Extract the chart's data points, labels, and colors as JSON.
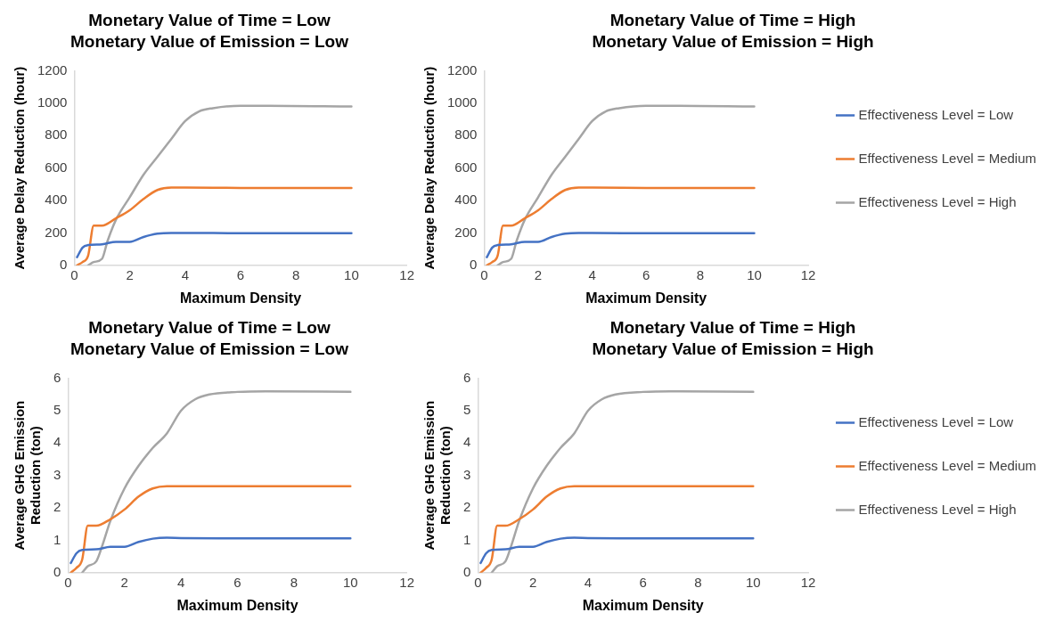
{
  "chart_data": [
    {
      "type": "line",
      "title": "Monetary Value of Time = Low",
      "subtitle": "Monetary Value of Emission = Low",
      "xlabel": "Maximum Density",
      "ylabel": "Average Delay Reduction (hour)",
      "xlim": [
        0,
        12
      ],
      "xticks": [
        0,
        2,
        4,
        6,
        8,
        10,
        12
      ],
      "ylim": [
        0,
        1200
      ],
      "yticks": [
        0,
        200,
        400,
        600,
        800,
        1000,
        1200
      ],
      "grid": false,
      "legend": false,
      "marker": "none",
      "line_style": "solid",
      "series": [
        {
          "color": "#4472c4",
          "x": [
            0.1,
            0.3,
            0.5,
            1,
            1.5,
            2,
            2.5,
            3,
            3.5,
            4,
            6,
            10
          ],
          "values": [
            50,
            110,
            125,
            130,
            145,
            145,
            175,
            195,
            200,
            200,
            198,
            198
          ]
        },
        {
          "color": "#ed7d31",
          "x": [
            0.1,
            0.3,
            0.5,
            0.7,
            1,
            1.5,
            2,
            2.5,
            3,
            3.5,
            4,
            6,
            10
          ],
          "values": [
            0,
            20,
            60,
            245,
            245,
            290,
            340,
            410,
            465,
            480,
            480,
            478,
            478
          ]
        },
        {
          "color": "#a5a5a5",
          "x": [
            0.5,
            0.7,
            1,
            1.2,
            1.5,
            2,
            2.5,
            3,
            3.5,
            4,
            4.5,
            5,
            6,
            7,
            10
          ],
          "values": [
            0,
            20,
            40,
            150,
            280,
            420,
            560,
            670,
            780,
            890,
            950,
            970,
            985,
            985,
            980
          ]
        }
      ]
    },
    {
      "type": "line",
      "title": "Monetary Value of Time = High",
      "subtitle": "Monetary Value of Emission = High",
      "xlabel": "Maximum Density",
      "ylabel": "Average Delay Reduction (hour)",
      "xlim": [
        0,
        12
      ],
      "xticks": [
        0,
        2,
        4,
        6,
        8,
        10,
        12
      ],
      "ylim": [
        0,
        1200
      ],
      "yticks": [
        0,
        200,
        400,
        600,
        800,
        1000,
        1200
      ],
      "grid": false,
      "legend": "right",
      "marker": "none",
      "line_style": "solid",
      "series": [
        {
          "name": "Effectiveness Level = Low",
          "color": "#4472c4",
          "x": [
            0.1,
            0.3,
            0.5,
            1,
            1.5,
            2,
            2.5,
            3,
            3.5,
            4,
            6,
            10
          ],
          "values": [
            50,
            110,
            125,
            130,
            145,
            145,
            175,
            195,
            200,
            200,
            198,
            198
          ]
        },
        {
          "name": "Effectiveness Level = Medium",
          "color": "#ed7d31",
          "x": [
            0.1,
            0.3,
            0.5,
            0.7,
            1,
            1.5,
            2,
            2.5,
            3,
            3.5,
            4,
            6,
            10
          ],
          "values": [
            0,
            20,
            60,
            245,
            245,
            290,
            340,
            410,
            465,
            480,
            480,
            478,
            478
          ]
        },
        {
          "name": "Effectiveness Level = High",
          "color": "#a5a5a5",
          "x": [
            0.5,
            0.7,
            1,
            1.2,
            1.5,
            2,
            2.5,
            3,
            3.5,
            4,
            4.5,
            5,
            6,
            7,
            10
          ],
          "values": [
            0,
            20,
            40,
            150,
            280,
            420,
            560,
            670,
            780,
            890,
            950,
            970,
            985,
            985,
            980
          ]
        }
      ]
    },
    {
      "type": "line",
      "title": "Monetary Value of Time = Low",
      "subtitle": "Monetary Value of Emission = Low",
      "xlabel": "Maximum Density",
      "ylabel": "Average GHG Emission Reduction (ton)",
      "xlim": [
        0,
        12
      ],
      "xticks": [
        0,
        2,
        4,
        6,
        8,
        10,
        12
      ],
      "ylim": [
        0,
        6
      ],
      "yticks": [
        0,
        1,
        2,
        3,
        4,
        5,
        6
      ],
      "grid": false,
      "legend": false,
      "marker": "none",
      "line_style": "solid",
      "series": [
        {
          "color": "#4472c4",
          "x": [
            0.1,
            0.3,
            0.5,
            1,
            1.5,
            2,
            2.5,
            3,
            3.5,
            4,
            6,
            10
          ],
          "values": [
            0.3,
            0.6,
            0.7,
            0.72,
            0.8,
            0.8,
            0.95,
            1.05,
            1.08,
            1.07,
            1.06,
            1.06
          ]
        },
        {
          "color": "#ed7d31",
          "x": [
            0.1,
            0.3,
            0.5,
            0.7,
            1,
            1.5,
            2,
            2.5,
            3,
            3.5,
            4,
            10
          ],
          "values": [
            0,
            0.15,
            0.4,
            1.45,
            1.45,
            1.65,
            1.95,
            2.35,
            2.6,
            2.67,
            2.67,
            2.67
          ]
        },
        {
          "color": "#a5a5a5",
          "x": [
            0.5,
            0.7,
            1,
            1.2,
            1.5,
            2,
            2.5,
            3,
            3.5,
            4,
            4.5,
            5,
            6,
            7,
            10
          ],
          "values": [
            0,
            0.2,
            0.35,
            0.8,
            1.6,
            2.6,
            3.3,
            3.85,
            4.3,
            5.0,
            5.35,
            5.5,
            5.58,
            5.6,
            5.58
          ]
        }
      ]
    },
    {
      "type": "line",
      "title": "Monetary Value of Time = High",
      "subtitle": "Monetary Value of Emission = High",
      "xlabel": "Maximum Density",
      "ylabel": "Average GHG Emission Reduction (ton)",
      "xlim": [
        0,
        12
      ],
      "xticks": [
        0,
        2,
        4,
        6,
        8,
        10,
        12
      ],
      "ylim": [
        0,
        6
      ],
      "yticks": [
        0,
        1,
        2,
        3,
        4,
        5,
        6
      ],
      "grid": false,
      "legend": "right",
      "marker": "none",
      "line_style": "solid",
      "series": [
        {
          "name": "Effectiveness Level = Low",
          "color": "#4472c4",
          "x": [
            0.1,
            0.3,
            0.5,
            1,
            1.5,
            2,
            2.5,
            3,
            3.5,
            4,
            6,
            10
          ],
          "values": [
            0.3,
            0.6,
            0.7,
            0.72,
            0.8,
            0.8,
            0.95,
            1.05,
            1.08,
            1.07,
            1.06,
            1.06
          ]
        },
        {
          "name": "Effectiveness Level = Medium",
          "color": "#ed7d31",
          "x": [
            0.1,
            0.3,
            0.5,
            0.7,
            1,
            1.5,
            2,
            2.5,
            3,
            3.5,
            4,
            10
          ],
          "values": [
            0,
            0.15,
            0.4,
            1.45,
            1.45,
            1.65,
            1.95,
            2.35,
            2.6,
            2.67,
            2.67,
            2.67
          ]
        },
        {
          "name": "Effectiveness Level = High",
          "color": "#a5a5a5",
          "x": [
            0.5,
            0.7,
            1,
            1.2,
            1.5,
            2,
            2.5,
            3,
            3.5,
            4,
            4.5,
            5,
            6,
            7,
            10
          ],
          "values": [
            0,
            0.2,
            0.35,
            0.8,
            1.6,
            2.6,
            3.3,
            3.85,
            4.3,
            5.0,
            5.35,
            5.5,
            5.58,
            5.6,
            5.58
          ]
        }
      ]
    }
  ]
}
